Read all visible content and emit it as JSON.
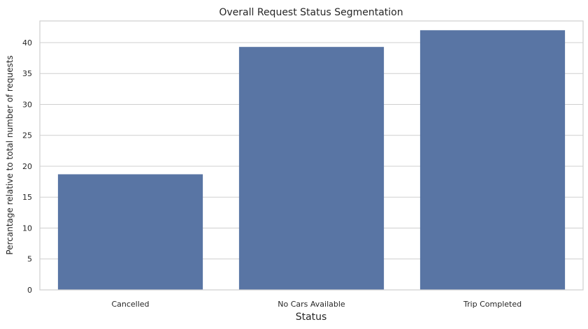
{
  "chart_data": {
    "type": "bar",
    "title": "Overall Request Status Segmentation",
    "xlabel": "Status",
    "ylabel": "Percantage relative to total number of requests",
    "categories": [
      "Cancelled",
      "No Cars Available",
      "Trip Completed"
    ],
    "values": [
      18.7,
      39.3,
      42.0
    ],
    "ylim": [
      0,
      43.5
    ],
    "yticks": [
      0,
      5,
      10,
      15,
      20,
      25,
      30,
      35,
      40
    ],
    "grid": true,
    "bar_color": "#5975a4"
  }
}
